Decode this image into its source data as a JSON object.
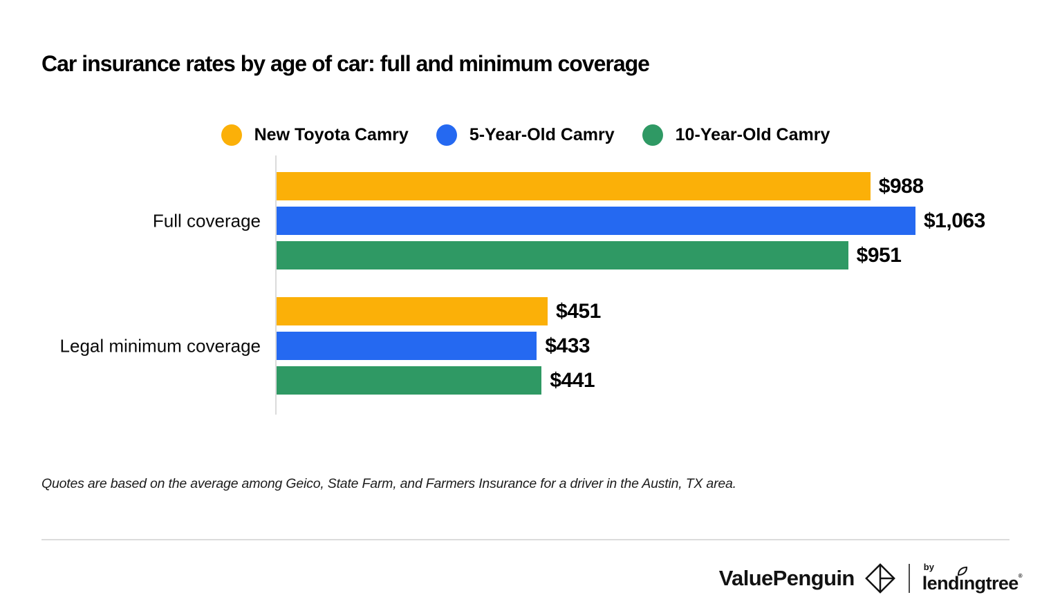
{
  "title": "Car insurance rates by age of car: full and minimum coverage",
  "chart_data": {
    "type": "bar",
    "orientation": "horizontal",
    "title": "Car insurance rates by age of car: full and minimum coverage",
    "categories": [
      "Full coverage",
      "Legal minimum coverage"
    ],
    "series": [
      {
        "name": "New Toyota Camry",
        "color": "#FBB008",
        "values": [
          988,
          451
        ],
        "display": [
          "$988",
          "$451"
        ]
      },
      {
        "name": "5-Year-Old Camry",
        "color": "#2569F1",
        "values": [
          1063,
          433
        ],
        "display": [
          "$1,063",
          "$433"
        ]
      },
      {
        "name": "10-Year-Old Camry",
        "color": "#2F9964",
        "values": [
          951,
          441
        ],
        "display": [
          "$951",
          "$441"
        ]
      }
    ],
    "xlim": [
      0,
      1063
    ],
    "grid": false,
    "legend_position": "top-center",
    "axis_color": "#DBDBDB"
  },
  "footnote": "Quotes are based on the average among Geico, State Farm, and Farmers Insurance for a driver in the Austin, TX area.",
  "branding": {
    "valuepenguin": "ValuePenguin",
    "by": "by",
    "lendingtree_pre": "lend",
    "lendingtree_i": "ı",
    "lendingtree_post": "ngtree",
    "registered_mark": "®"
  }
}
